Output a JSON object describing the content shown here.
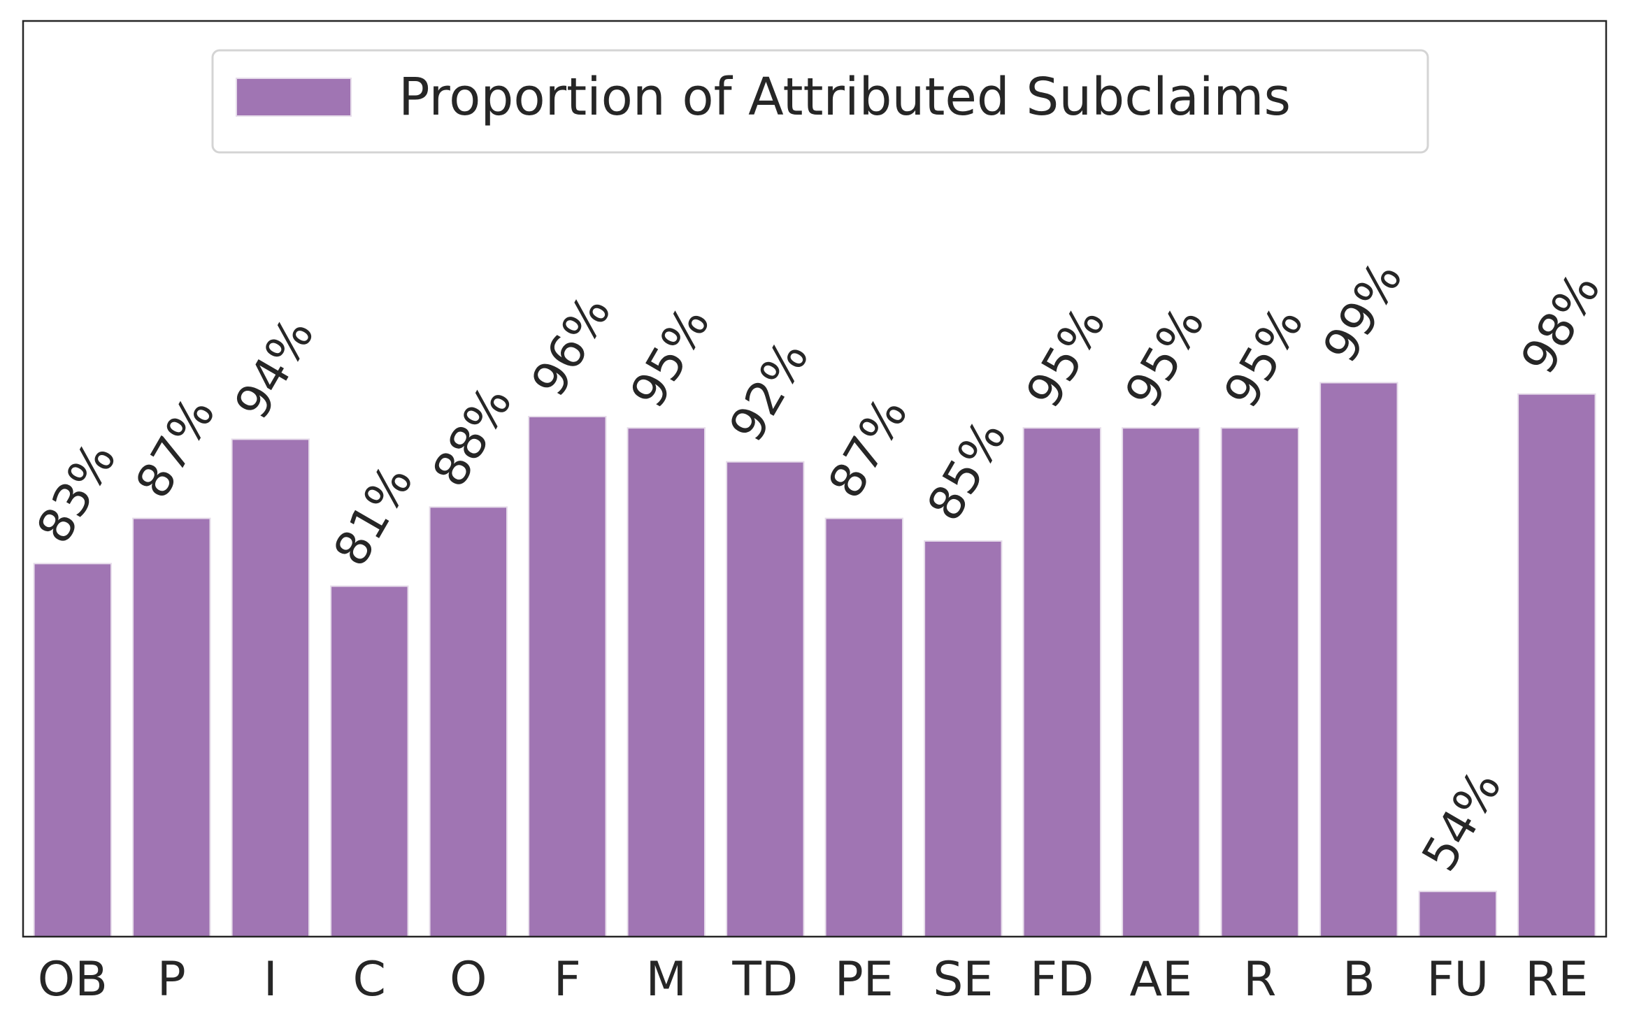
{
  "chart_data": {
    "type": "bar",
    "title": "",
    "xlabel": "",
    "ylabel": "",
    "categories": [
      "OB",
      "P",
      "I",
      "C",
      "O",
      "F",
      "M",
      "TD",
      "PE",
      "SE",
      "FD",
      "AE",
      "R",
      "B",
      "FU",
      "RE"
    ],
    "series": [
      {
        "name": "Proportion of Attributed Subclaims",
        "values": [
          83,
          87,
          94,
          81,
          88,
          96,
          95,
          92,
          87,
          85,
          95,
          95,
          95,
          99,
          54,
          98
        ],
        "color": "#a075b3"
      }
    ],
    "labels": [
      "83%",
      "87%",
      "94%",
      "81%",
      "88%",
      "96%",
      "95%",
      "92%",
      "87%",
      "85%",
      "95%",
      "95%",
      "95%",
      "99%",
      "54%",
      "98%"
    ],
    "ylim": [
      50,
      131
    ],
    "grid": false,
    "legend": {
      "position": "top-center",
      "entries": [
        "Proportion of Attributed Subclaims"
      ]
    }
  },
  "colors": {
    "bar": "#a075b3",
    "bar_edge": "#e6dcea",
    "text": "#262626",
    "axes": "#262626",
    "legend_border": "#d4d4d4"
  }
}
